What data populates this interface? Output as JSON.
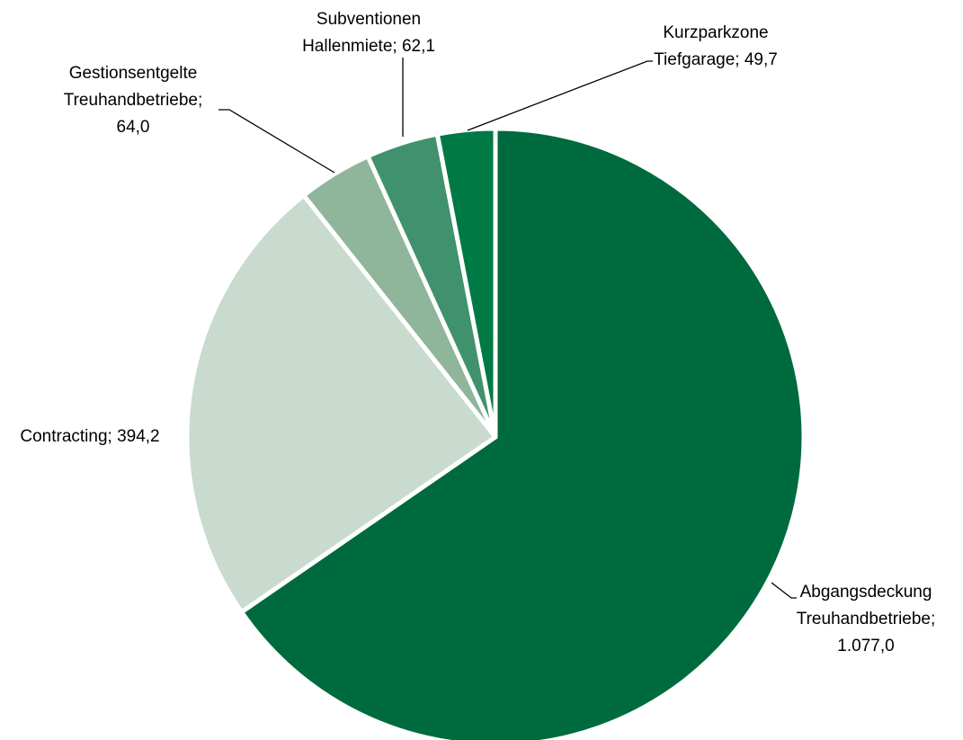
{
  "chart_data": {
    "type": "pie",
    "categories": [
      "Abgangsdeckung Treuhandbetriebe",
      "Contracting",
      "Gestionsentgelte Treuhandbetriebe",
      "Subventionen Hallenmiete",
      "Kurzparkzone Tiefgarage"
    ],
    "values": [
      1077.0,
      394.2,
      64.0,
      62.1,
      49.7
    ],
    "value_labels": [
      "1.077,0",
      "394,2",
      "64,0",
      "62,1",
      "49,7"
    ],
    "label_separator": ";",
    "colors": [
      "#006a3f",
      "#c9dace",
      "#8fb59b",
      "#3f926d",
      "#007a45"
    ]
  }
}
